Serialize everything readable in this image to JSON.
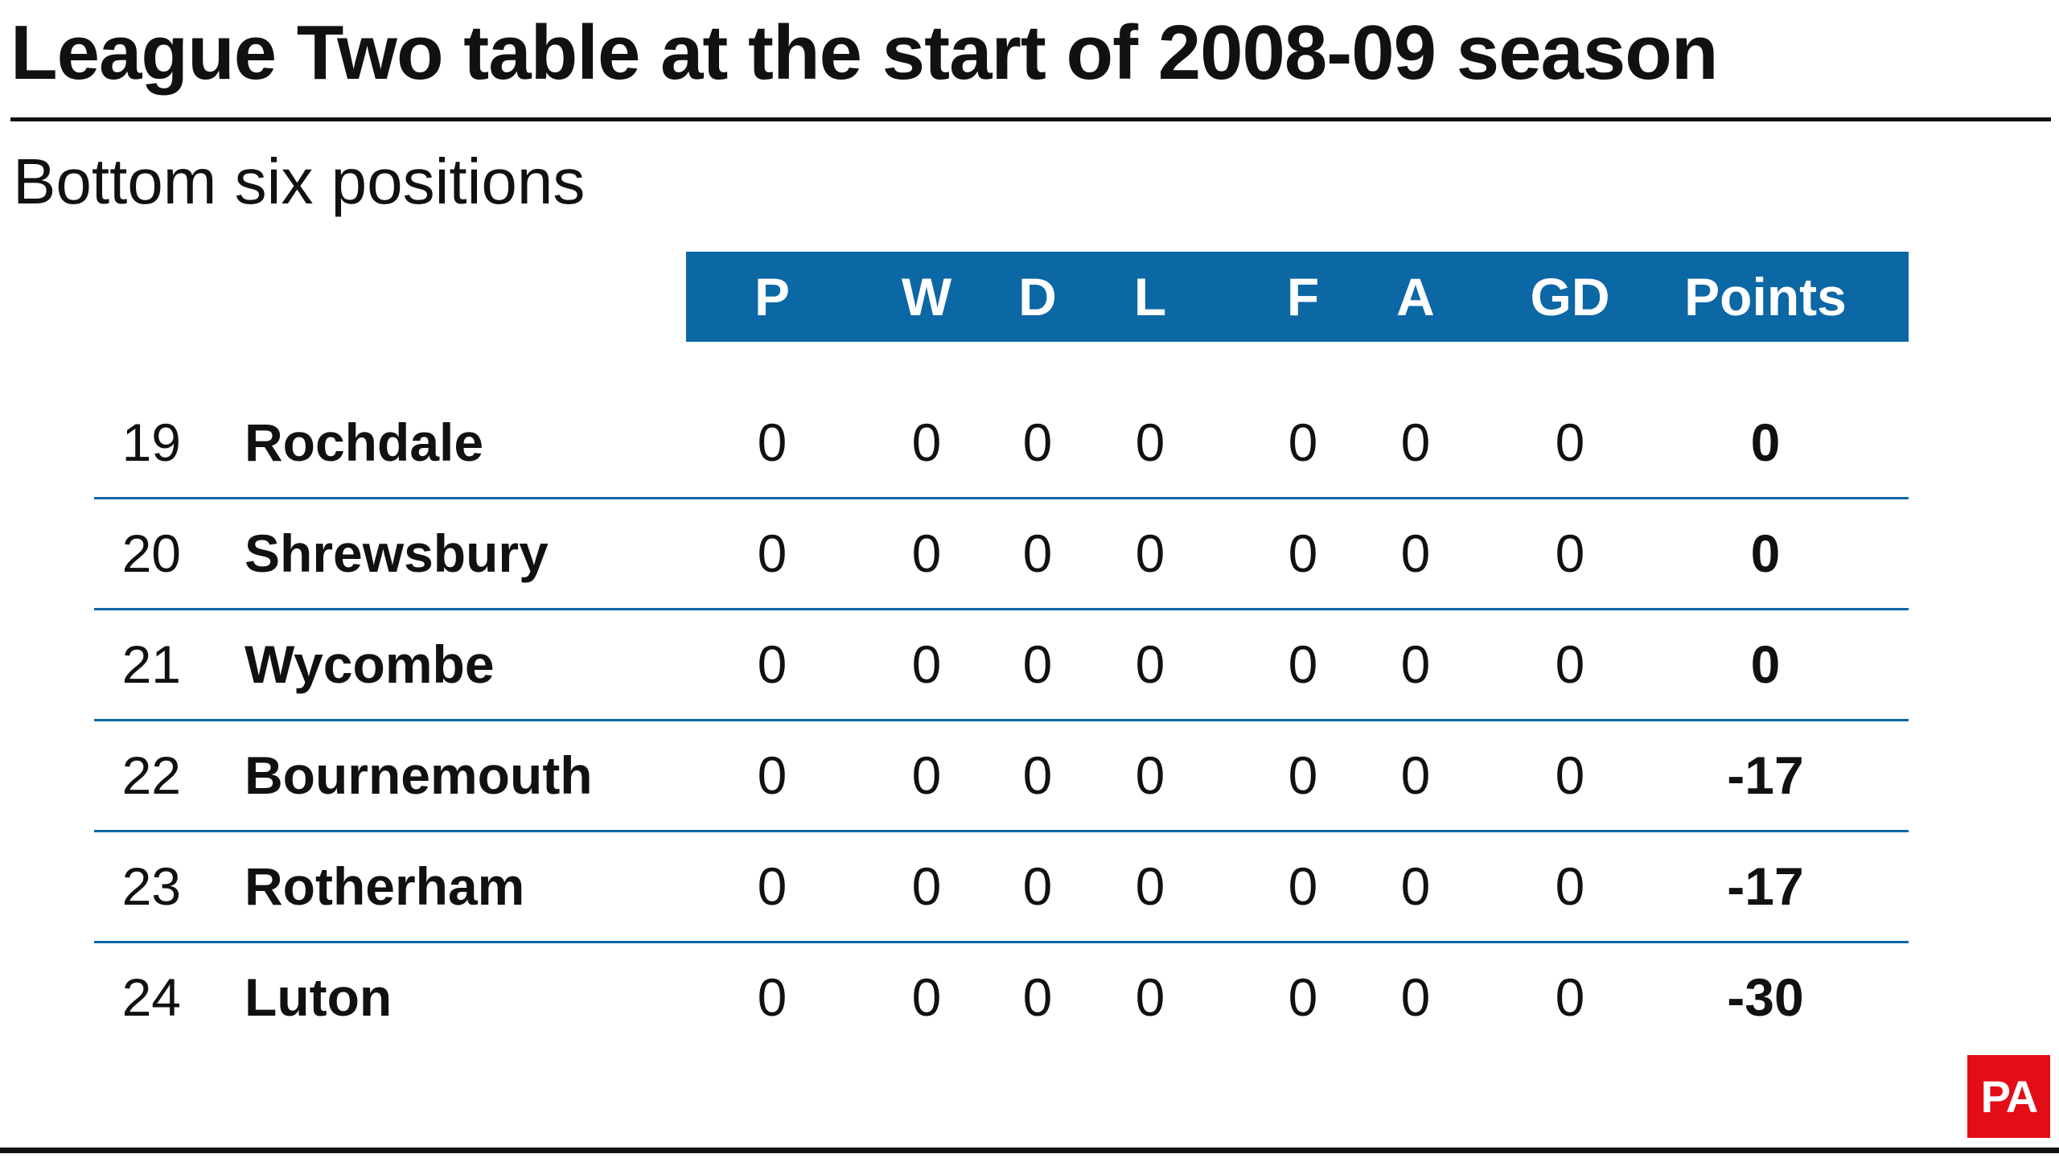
{
  "chart_data": {
    "type": "table",
    "title": "League Two table at the start of 2008-09 season",
    "subtitle": "Bottom six positions",
    "columns": [
      "P",
      "W",
      "D",
      "L",
      "F",
      "A",
      "GD",
      "Points"
    ],
    "rows": [
      {
        "pos": "19",
        "team": "Rochdale",
        "values": [
          "0",
          "0",
          "0",
          "0",
          "0",
          "0",
          "0",
          "0"
        ]
      },
      {
        "pos": "20",
        "team": "Shrewsbury",
        "values": [
          "0",
          "0",
          "0",
          "0",
          "0",
          "0",
          "0",
          "0"
        ]
      },
      {
        "pos": "21",
        "team": "Wycombe",
        "values": [
          "0",
          "0",
          "0",
          "0",
          "0",
          "0",
          "0",
          "0"
        ]
      },
      {
        "pos": "22",
        "team": "Bournemouth",
        "values": [
          "0",
          "0",
          "0",
          "0",
          "0",
          "0",
          "0",
          "-17"
        ]
      },
      {
        "pos": "23",
        "team": "Rotherham",
        "values": [
          "0",
          "0",
          "0",
          "0",
          "0",
          "0",
          "0",
          "-17"
        ]
      },
      {
        "pos": "24",
        "team": "Luton",
        "values": [
          "0",
          "0",
          "0",
          "0",
          "0",
          "0",
          "0",
          "-30"
        ]
      }
    ],
    "colors": {
      "header": "#0c67a5",
      "rules": "#0c67a5",
      "logo": "#e20d16"
    }
  },
  "logo": {
    "text": "PA"
  }
}
